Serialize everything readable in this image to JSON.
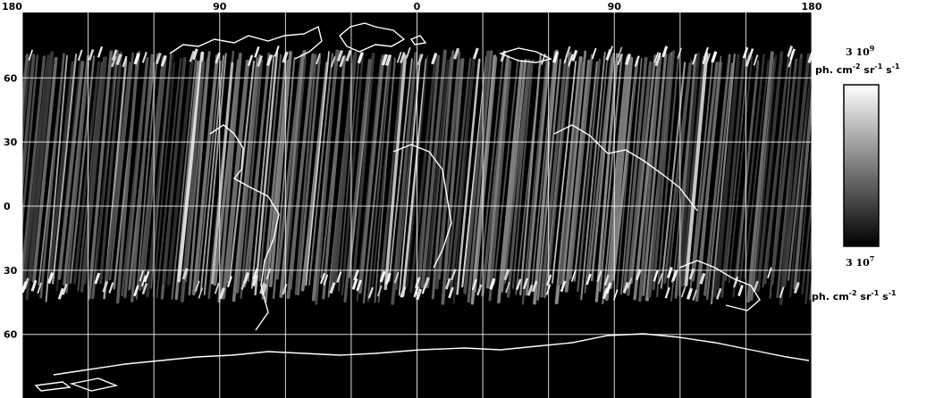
{
  "map": {
    "longitude_ticks": [
      "180",
      "90",
      "0",
      "90",
      "180"
    ],
    "latitude_ticks": [
      "60",
      "30",
      "0",
      "30",
      "60"
    ],
    "longitude_tick_values": [
      -180,
      -90,
      0,
      90,
      180
    ],
    "latitude_tick_values": [
      60,
      30,
      0,
      -30,
      -60
    ],
    "grid_longitudes": [
      -180,
      -150,
      -120,
      -90,
      -60,
      -30,
      0,
      30,
      60,
      90,
      120,
      150,
      180
    ],
    "grid_latitudes": [
      60,
      30,
      0,
      -30,
      -60
    ],
    "data_band_latitudes": [
      -35,
      70
    ],
    "background_color": "#000000",
    "grid_color": "#ffffff",
    "coastline_color": "#ffffff"
  },
  "colorbar": {
    "max_label": "3 10",
    "max_exponent": "9",
    "min_label": "3 10",
    "min_exponent": "7",
    "unit_top": "ph. cm-2 sr-1 s-1",
    "unit_bottom": "ph. cm-2 sr-1 s-1",
    "unit_base": "ph. cm",
    "unit_exp1": "-2",
    "unit_mid": " sr",
    "unit_exp2": "-1",
    "unit_end": " s",
    "unit_exp3": "-1",
    "gradient_top_color": "#ffffff",
    "gradient_bottom_color": "#000000"
  }
}
